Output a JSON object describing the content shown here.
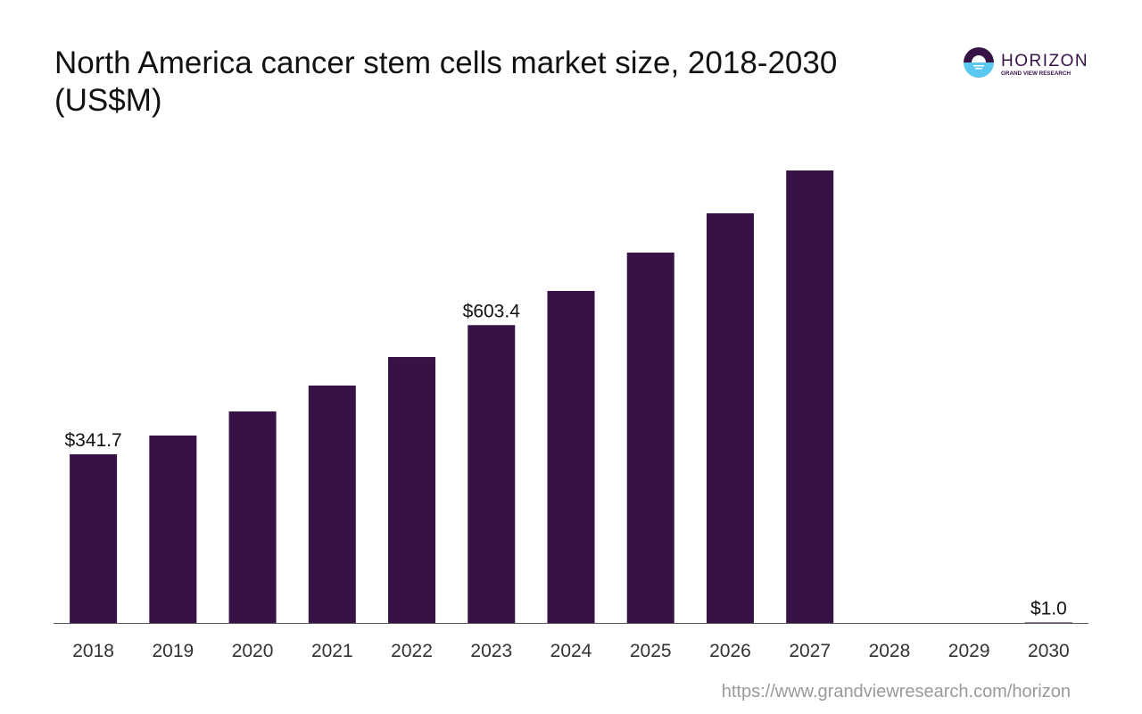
{
  "chart_data": {
    "type": "bar",
    "title": "North America cancer stem cells market size, 2018-2030 (US$M)",
    "categories": [
      "2018",
      "2019",
      "2020",
      "2021",
      "2022",
      "2023",
      "2024",
      "2025",
      "2026",
      "2027",
      "2028",
      "2029",
      "2030"
    ],
    "values": [
      341.7,
      379.7,
      428.5,
      481.0,
      538.8,
      603.4,
      672.6,
      750.3,
      829.9,
      916.7,
      0,
      0,
      1.0
    ],
    "data_labels": {
      "0": "$341.7",
      "5": "$603.4",
      "12": "$1.0"
    },
    "xlabel": "",
    "ylabel": "",
    "ylim": [
      0,
      1000
    ],
    "grid": false,
    "bar_color": "#371247"
  },
  "logo": {
    "name": "HORIZON",
    "sub": "GRAND VIEW RESEARCH"
  },
  "source": "https://www.grandviewresearch.com/horizon"
}
